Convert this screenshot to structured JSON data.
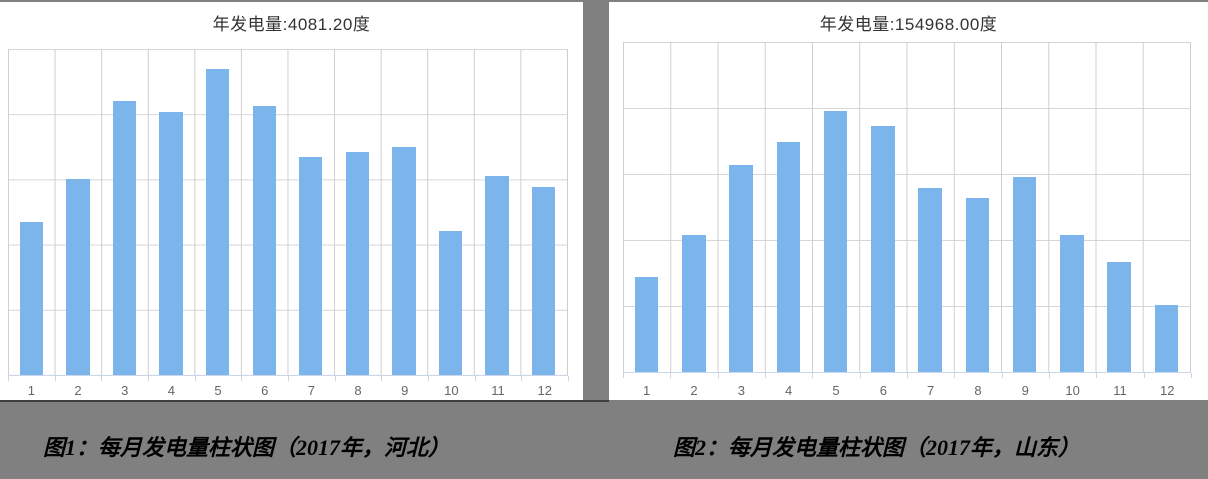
{
  "page": {
    "background_color": "#808080",
    "panel_color": "#ffffff"
  },
  "colors": {
    "bar": "#7cb5ec",
    "grid_line": "#d6d6d6",
    "axis_line": "#ccd6eb",
    "axis_label": "#666666",
    "chart_title": "#333333",
    "caption_text": "#000000"
  },
  "captions": [
    {
      "text": "图1：每月发电量柱状图（2017年，河北）"
    },
    {
      "text": "图2：每月发电量柱状图（2017年，山东）"
    }
  ],
  "chart_data": [
    {
      "type": "bar",
      "title": "年发电量:4081.20度",
      "annual_total": 4081.2,
      "unit": "度",
      "categories": [
        "1",
        "2",
        "3",
        "4",
        "5",
        "6",
        "7",
        "8",
        "9",
        "10",
        "11",
        "12"
      ],
      "values": [
        235.2,
        300,
        420,
        403,
        470,
        413,
        335,
        342,
        349,
        221,
        305,
        288
      ],
      "xlabel": "",
      "ylabel": "",
      "ylim": [
        0,
        500
      ],
      "grid": true,
      "legend": "none",
      "bar_color": "#7cb5ec"
    },
    {
      "type": "bar",
      "title": "年发电量:154968.00度",
      "annual_total": 154968.0,
      "unit": "度",
      "categories": [
        "1",
        "2",
        "3",
        "4",
        "5",
        "6",
        "7",
        "8",
        "9",
        "10",
        "11",
        "12"
      ],
      "values": [
        7200,
        10400,
        15700,
        17450,
        19800,
        18600,
        13968,
        13200,
        14800,
        10400,
        8350,
        5100
      ],
      "xlabel": "",
      "ylabel": "",
      "ylim": [
        0,
        25000
      ],
      "grid": true,
      "legend": "none",
      "bar_color": "#7cb5ec"
    }
  ]
}
